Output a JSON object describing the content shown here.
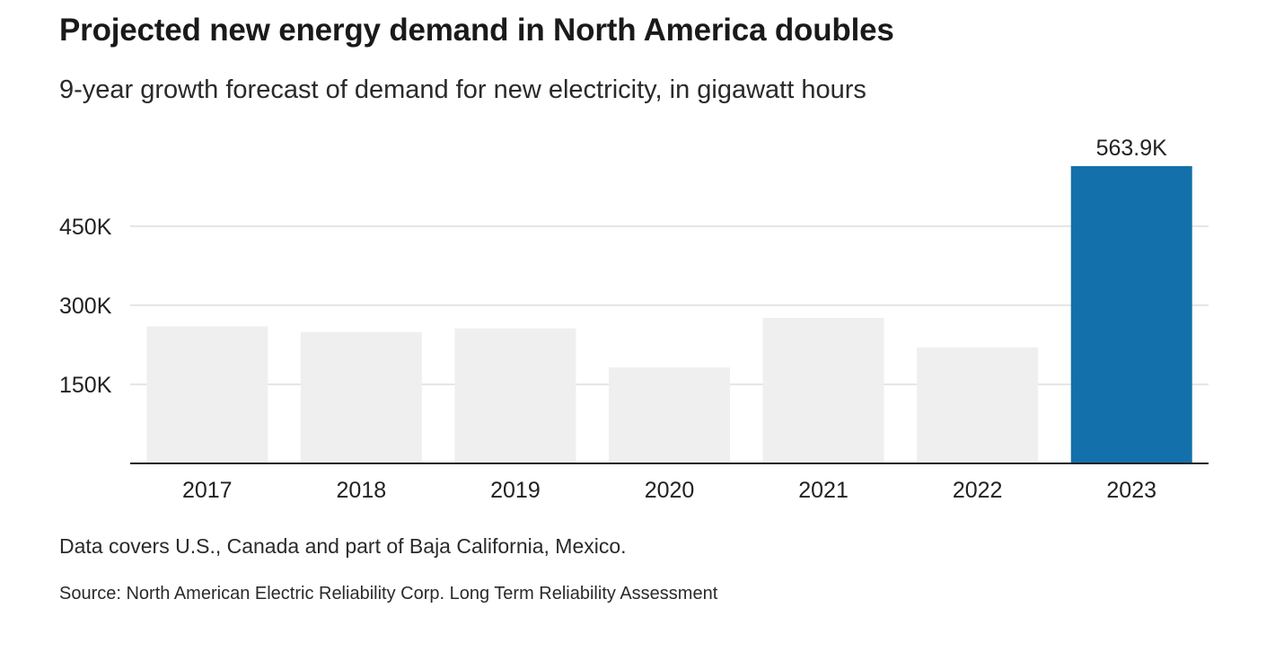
{
  "header": {
    "title": "Projected new energy demand in North America doubles",
    "subtitle": "9-year growth forecast of demand for new electricity, in gigawatt hours"
  },
  "footer": {
    "note": "Data covers U.S., Canada and part of Baja California, Mexico.",
    "source": "Source: North American Electric Reliability Corp. Long Term Reliability Assessment"
  },
  "colors": {
    "bar_default": "#efefef",
    "bar_highlight": "#1470aa",
    "gridline": "#dddddd",
    "baseline": "#222222"
  },
  "chart_data": {
    "type": "bar",
    "title": "Projected new energy demand in North America doubles",
    "subtitle": "9-year growth forecast of demand for new electricity, in gigawatt hours",
    "xlabel": "",
    "ylabel": "",
    "categories": [
      "2017",
      "2018",
      "2019",
      "2020",
      "2021",
      "2022",
      "2023"
    ],
    "values": [
      260000,
      249000,
      256000,
      182000,
      276000,
      220000,
      563900
    ],
    "highlight_index": 6,
    "data_labels": [
      {
        "index": 6,
        "text": "563.9K"
      }
    ],
    "y_ticks": [
      150000,
      300000,
      450000
    ],
    "y_tick_labels": [
      "150K",
      "300K",
      "450K"
    ],
    "ylim": [
      0,
      563900
    ],
    "grid": true,
    "legend": "none"
  }
}
